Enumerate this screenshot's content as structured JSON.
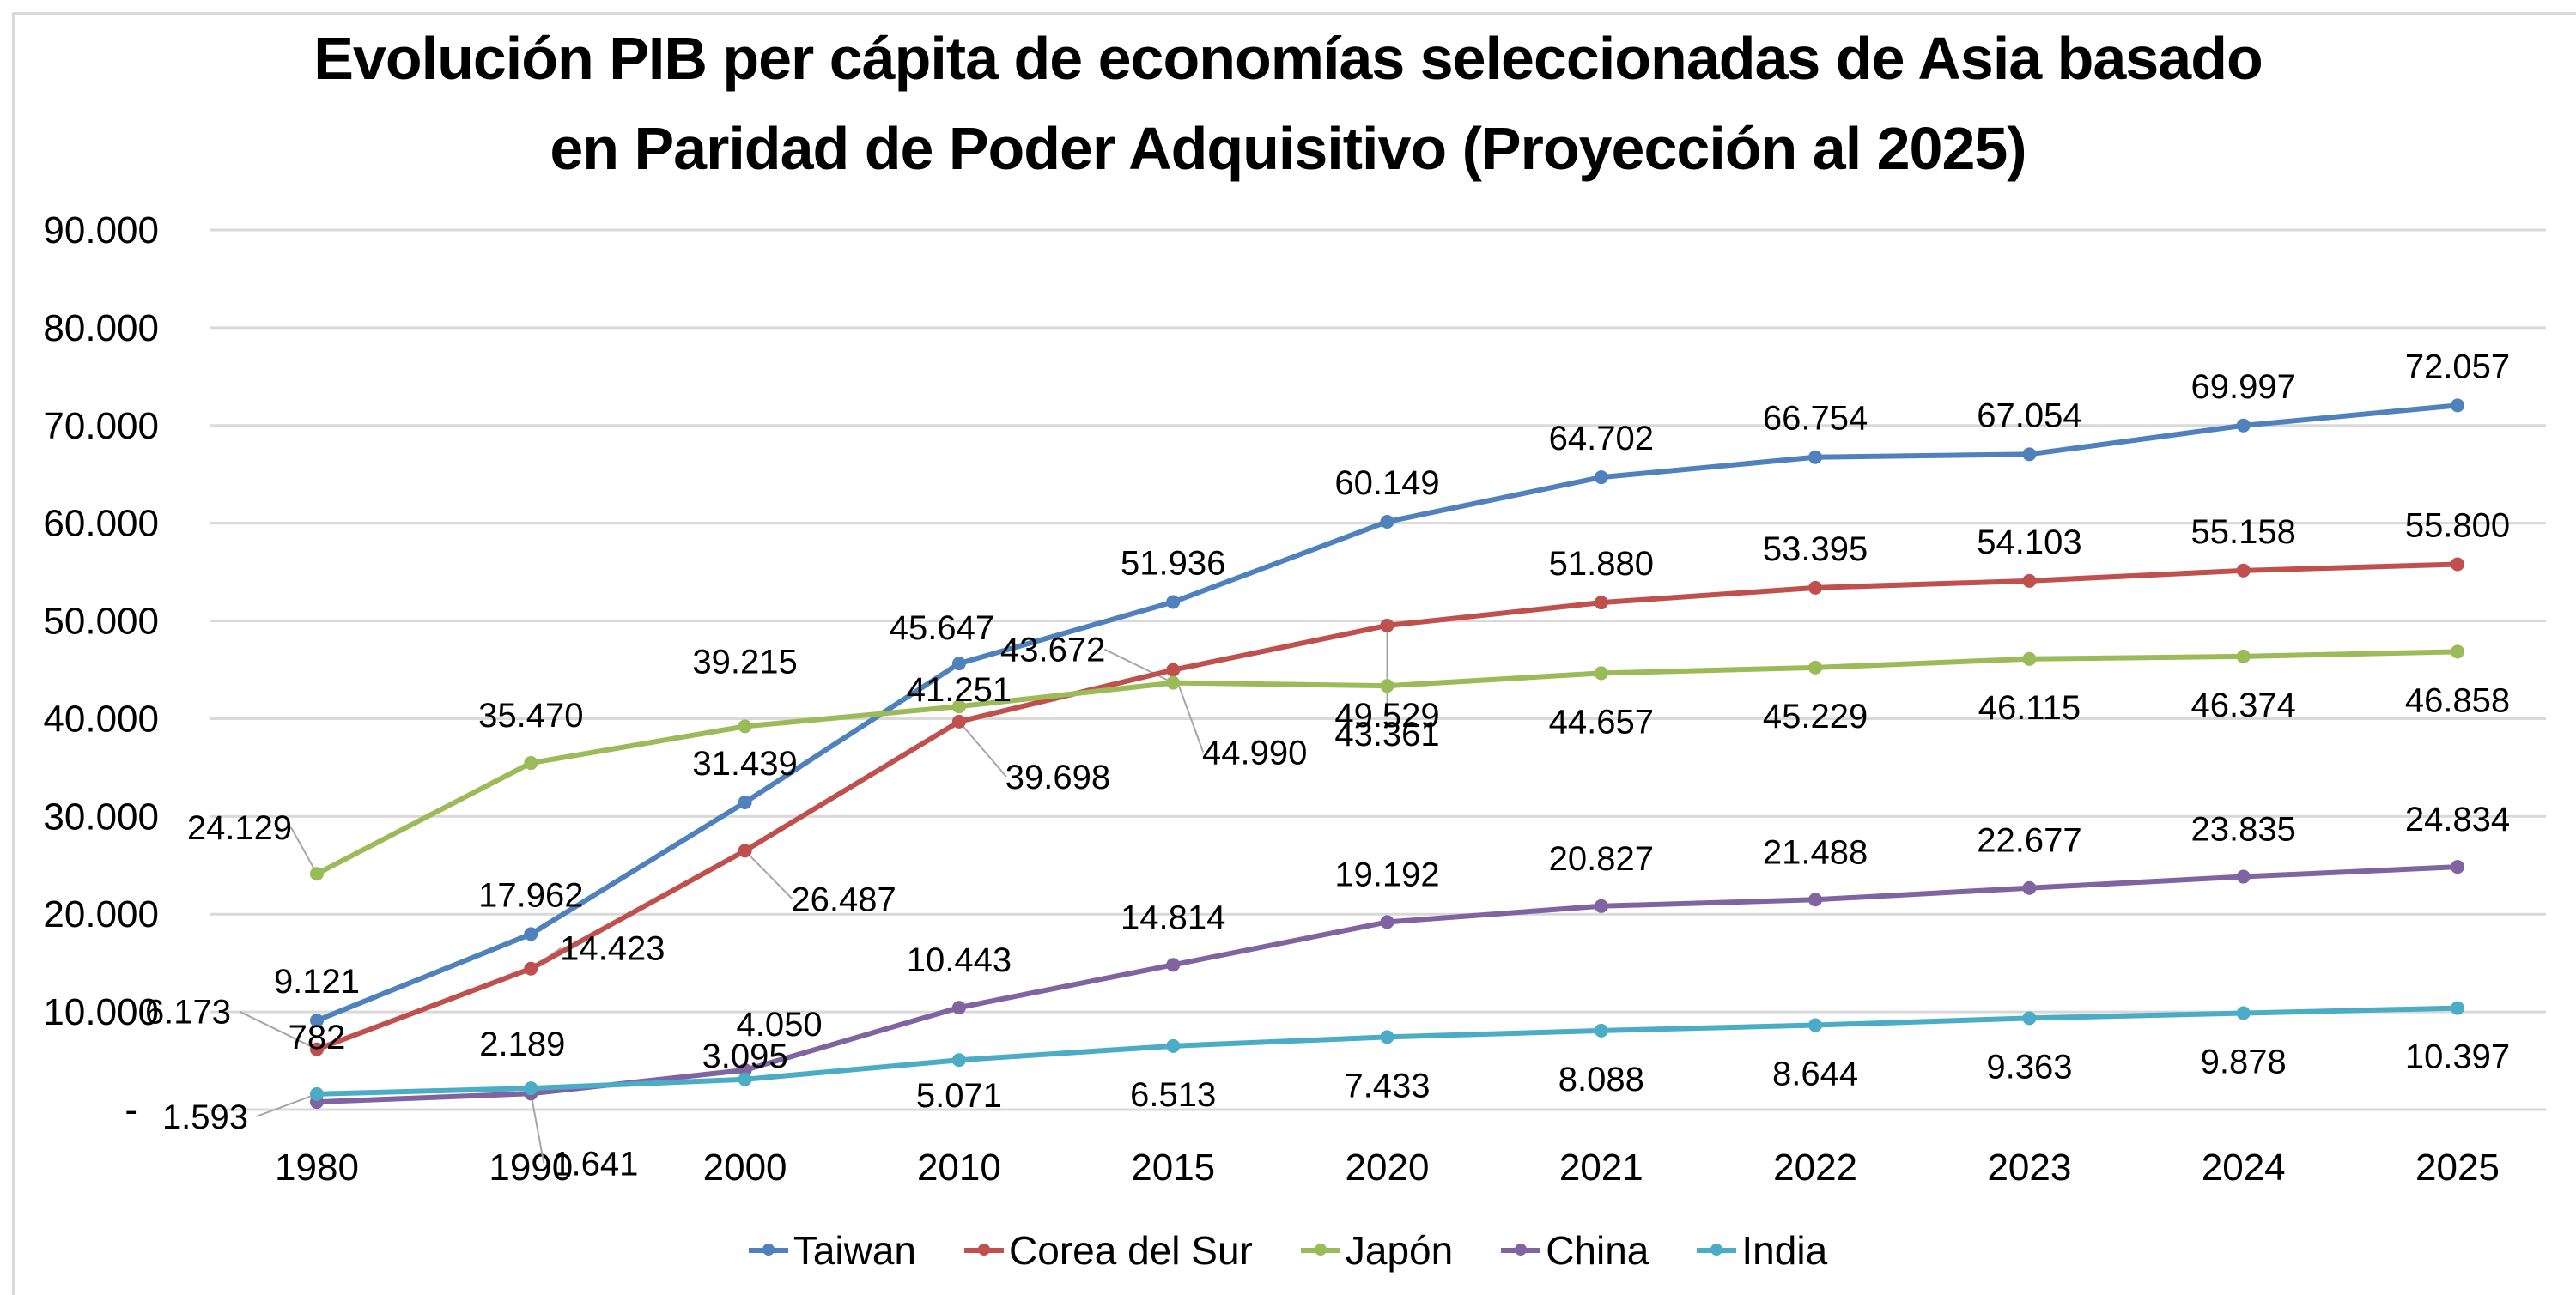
{
  "chart_data": {
    "type": "line",
    "title_lines": [
      "Evolución PIB per cápita de economías seleccionadas de Asia basado",
      "en Paridad de Poder Adquisitivo (Proyección al 2025)"
    ],
    "title": "Evolución PIB per cápita de economías seleccionadas de Asia basado en Paridad de Poder Adquisitivo (Proyección al 2025)",
    "xlabel": "",
    "ylabel": "",
    "categories": [
      "1980",
      "1990",
      "2000",
      "2010",
      "2015",
      "2020",
      "2021",
      "2022",
      "2023",
      "2024",
      "2025"
    ],
    "ylim": [
      0,
      90000
    ],
    "yticks": [
      0,
      10000,
      20000,
      30000,
      40000,
      50000,
      60000,
      70000,
      80000,
      90000
    ],
    "ytick_labels": [
      "-",
      "10.000",
      "20.000",
      "30.000",
      "40.000",
      "50.000",
      "60.000",
      "70.000",
      "80.000",
      "90.000"
    ],
    "grid": true,
    "legend_position": "bottom",
    "series": [
      {
        "name": "Taiwan",
        "color": "#4f81bd",
        "values": [
          9121,
          17962,
          31439,
          45647,
          51936,
          60149,
          64702,
          66754,
          67054,
          69997,
          72057
        ],
        "labels": [
          "9.121",
          "17.962",
          "31.439",
          "45.647",
          "51.936",
          "60.149",
          "64.702",
          "66.754",
          "67.054",
          "69.997",
          "72.057"
        ]
      },
      {
        "name": "Corea del Sur",
        "color": "#c0504d",
        "values": [
          6173,
          14423,
          26487,
          39698,
          44990,
          49529,
          51880,
          53395,
          54103,
          55158,
          55800
        ],
        "labels": [
          "6.173",
          "14.423",
          "26.487",
          "39.698",
          "44.990",
          "49.529",
          "51.880",
          "53.395",
          "54.103",
          "55.158",
          "55.800"
        ]
      },
      {
        "name": "Japón",
        "color": "#9bbb59",
        "values": [
          24129,
          35470,
          39215,
          41251,
          43672,
          43361,
          44657,
          45229,
          46115,
          46374,
          46858
        ],
        "labels": [
          "24.129",
          "35.470",
          "39.215",
          "41.251",
          "43.672",
          "43.361",
          "44.657",
          "45.229",
          "46.115",
          "46.374",
          "46.858"
        ]
      },
      {
        "name": "China",
        "color": "#8064a2",
        "values": [
          782,
          1641,
          4050,
          10443,
          14814,
          19192,
          20827,
          21488,
          22677,
          23835,
          24834
        ],
        "labels": [
          "782",
          "1.641",
          "4.050",
          "10.443",
          "14.814",
          "19.192",
          "20.827",
          "21.488",
          "22.677",
          "23.835",
          "24.834"
        ]
      },
      {
        "name": "India",
        "color": "#4bacc6",
        "values": [
          1593,
          2189,
          3095,
          5071,
          6513,
          7433,
          8088,
          8644,
          9363,
          9878,
          10397
        ],
        "labels": [
          "1.593",
          "2.189",
          "3.095",
          "5.071",
          "6.513",
          "7.433",
          "8.088",
          "8.644",
          "9.363",
          "9.878",
          "10.397"
        ]
      }
    ]
  }
}
